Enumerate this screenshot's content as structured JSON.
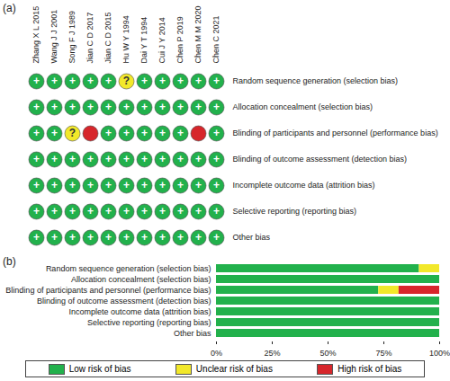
{
  "chart_data": [
    {
      "type": "traffic_light",
      "title": "(a)",
      "categories": [
        "Zhang X L 2015",
        "Wang J J 2001",
        "Song F J 1989",
        "Jian C D 2017",
        "Jian C D 2015",
        "Hu W Y 1994",
        "Dai Y T 1994",
        "Cui J Y 2014",
        "Chen P 2019",
        "Chen M M 2020",
        "Chen C 2021"
      ],
      "rows": [
        "Random sequence generation (selection bias)",
        "Allocation concealment (selection bias)",
        "Blinding of participants and personnel (performance bias)",
        "Blinding of outcome assessment (detection bias)",
        "Incomplete outcome data (attrition bias)",
        "Selective reporting (reporting bias)",
        "Other bias"
      ],
      "cells": [
        [
          "Low risk of bias",
          "Low risk of bias",
          "Low risk of bias",
          "Low risk of bias",
          "Low risk of bias",
          "Unclear risk of bias",
          "Low risk of bias",
          "Low risk of bias",
          "Low risk of bias",
          "Low risk of bias",
          "Low risk of bias"
        ],
        [
          "Low risk of bias",
          "Low risk of bias",
          "Low risk of bias",
          "Low risk of bias",
          "Low risk of bias",
          "Low risk of bias",
          "Low risk of bias",
          "Low risk of bias",
          "Low risk of bias",
          "Low risk of bias",
          "Low risk of bias"
        ],
        [
          "Low risk of bias",
          "Low risk of bias",
          "Unclear risk of bias",
          "High risk of bias",
          "Low risk of bias",
          "Low risk of bias",
          "Low risk of bias",
          "Low risk of bias",
          "Low risk of bias",
          "High risk of bias",
          "Low risk of bias"
        ],
        [
          "Low risk of bias",
          "Low risk of bias",
          "Low risk of bias",
          "Low risk of bias",
          "Low risk of bias",
          "Low risk of bias",
          "Low risk of bias",
          "Low risk of bias",
          "Low risk of bias",
          "Low risk of bias",
          "Low risk of bias"
        ],
        [
          "Low risk of bias",
          "Low risk of bias",
          "Low risk of bias",
          "Low risk of bias",
          "Low risk of bias",
          "Low risk of bias",
          "Low risk of bias",
          "Low risk of bias",
          "Low risk of bias",
          "Low risk of bias",
          "Low risk of bias"
        ],
        [
          "Low risk of bias",
          "Low risk of bias",
          "Low risk of bias",
          "Low risk of bias",
          "Low risk of bias",
          "Low risk of bias",
          "Low risk of bias",
          "Low risk of bias",
          "Low risk of bias",
          "Low risk of bias",
          "Low risk of bias"
        ],
        [
          "Low risk of bias",
          "Low risk of bias",
          "Low risk of bias",
          "Low risk of bias",
          "Low risk of bias",
          "Low risk of bias",
          "Low risk of bias",
          "Low risk of bias",
          "Low risk of bias",
          "Low risk of bias",
          "Low risk of bias"
        ]
      ],
      "symbols": {
        "Low risk of bias": "+",
        "Unclear risk of bias": "?"
      }
    },
    {
      "type": "bar",
      "title": "(b)",
      "orientation": "horizontal",
      "stacked": true,
      "legend": "bottom",
      "categories": [
        "Random sequence generation (selection bias)",
        "Allocation concealment (selection bias)",
        "Blinding of participants and personnel (performance bias)",
        "Blinding of outcome assessment (detection bias)",
        "Incomplete outcome data (attrition bias)",
        "Selective reporting (reporting bias)",
        "Other bias"
      ],
      "series": [
        {
          "name": "Low risk of bias",
          "color": "#22b14c",
          "values": [
            90.9,
            100,
            72.7,
            100,
            100,
            100,
            100
          ]
        },
        {
          "name": "Unclear risk of bias",
          "color": "#f2e82a",
          "values": [
            9.1,
            0,
            9.1,
            0,
            0,
            0,
            0
          ]
        },
        {
          "name": "High risk of bias",
          "color": "#d7262b",
          "values": [
            0,
            0,
            18.2,
            0,
            0,
            0,
            0
          ]
        }
      ],
      "xlim": [
        0,
        100
      ],
      "xticks": [
        {
          "value": 0,
          "label": "0%"
        },
        {
          "value": 25,
          "label": "25%"
        },
        {
          "value": 50,
          "label": "50%"
        },
        {
          "value": 75,
          "label": "75%"
        },
        {
          "value": 100,
          "label": "100%"
        }
      ]
    }
  ]
}
